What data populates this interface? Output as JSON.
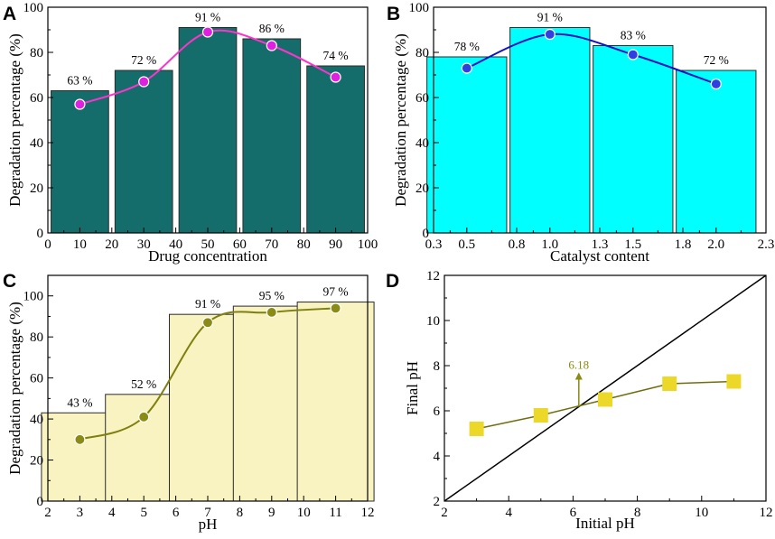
{
  "chart_data": [
    {
      "panel": "A",
      "type": "bar",
      "x": [
        10,
        30,
        50,
        70,
        90
      ],
      "values": [
        63,
        72,
        91,
        86,
        74
      ],
      "value_labels": [
        "63 %",
        "72 %",
        "91 %",
        "86 %",
        "74 %"
      ],
      "line_series": {
        "name": "trend",
        "x": [
          10,
          30,
          50,
          70,
          90
        ],
        "y": [
          57,
          67,
          89,
          83,
          69
        ]
      },
      "xlabel": "Drug concentration",
      "ylabel": "Degradation percentage (%)",
      "xlim": [
        0,
        100
      ],
      "ylim": [
        0,
        100
      ],
      "xticks": [
        0,
        10,
        20,
        30,
        40,
        50,
        60,
        70,
        80,
        90,
        100
      ],
      "xtick_labels": [
        "0",
        "10",
        "20",
        "30",
        "40",
        "50",
        "60",
        "70",
        "80",
        "90",
        "100"
      ],
      "yticks": [
        0,
        20,
        40,
        60,
        80,
        100
      ],
      "ytick_labels": [
        "0",
        "20",
        "40",
        "60",
        "80",
        "100"
      ],
      "colors": {
        "bar": "#156d6b",
        "line": "#ff33cc",
        "marker": "#e020e0"
      }
    },
    {
      "panel": "B",
      "type": "bar",
      "x": [
        0.5,
        1.0,
        1.5,
        2.0
      ],
      "values": [
        78,
        91,
        83,
        72
      ],
      "value_labels": [
        "78 %",
        "91 %",
        "83 %",
        "72 %"
      ],
      "line_series": {
        "name": "trend",
        "x": [
          0.5,
          1.0,
          1.5,
          2.0
        ],
        "y": [
          73,
          88,
          79,
          66
        ]
      },
      "xlabel": "Catalyst content",
      "ylabel": "Degradation percentage (%)",
      "xlim": [
        0.3,
        2.3
      ],
      "ylim": [
        0,
        100
      ],
      "xticks": [
        0.3,
        0.5,
        0.8,
        1.0,
        1.3,
        1.5,
        1.8,
        2.0,
        2.3
      ],
      "xtick_labels": [
        "0.3",
        "0.5",
        "0.8",
        "1.0",
        "1.3",
        "1.5",
        "1.8",
        "2.0",
        "2.3"
      ],
      "yticks": [
        0,
        20,
        40,
        60,
        80,
        100
      ],
      "ytick_labels": [
        "0",
        "20",
        "40",
        "60",
        "80",
        "100"
      ],
      "colors": {
        "bar": "#00ffff",
        "line": "#1010c0",
        "marker": "#3040e0"
      }
    },
    {
      "panel": "C",
      "type": "bar",
      "x": [
        3,
        5,
        7,
        9,
        11
      ],
      "values": [
        43,
        52,
        91,
        95,
        97
      ],
      "value_labels": [
        "43 %",
        "52 %",
        "91 %",
        "95 %",
        "97 %"
      ],
      "line_series": {
        "name": "trend",
        "x": [
          3,
          5,
          7,
          9,
          11
        ],
        "y": [
          30,
          41,
          87,
          92,
          94
        ]
      },
      "xlabel": "pH",
      "ylabel": "Degradation percentage (%)",
      "xlim": [
        2,
        12
      ],
      "ylim": [
        0,
        110
      ],
      "xticks": [
        2,
        3,
        4,
        5,
        6,
        7,
        8,
        9,
        10,
        11,
        12
      ],
      "xtick_labels": [
        "2",
        "3",
        "4",
        "5",
        "6",
        "7",
        "8",
        "9",
        "10",
        "11",
        "12"
      ],
      "yticks": [
        0,
        20,
        40,
        60,
        80,
        100
      ],
      "ytick_labels": [
        "0",
        "20",
        "40",
        "60",
        "80",
        "100"
      ],
      "colors": {
        "bar": "#f8f3c0",
        "line": "#7f7f10",
        "marker": "#8a8a14"
      }
    },
    {
      "panel": "D",
      "type": "scatter",
      "series": [
        {
          "name": "Final pH",
          "x": [
            3,
            5,
            7,
            9,
            11
          ],
          "y": [
            5.2,
            5.8,
            6.5,
            7.2,
            7.3
          ]
        }
      ],
      "reference_line": {
        "name": "y = x",
        "x": [
          2,
          12
        ],
        "y": [
          2,
          12
        ]
      },
      "annotation": {
        "text": "6.18",
        "x": 6.18,
        "y": 6.18
      },
      "xlabel": "Initial pH",
      "ylabel": "Final pH",
      "xlim": [
        2,
        12
      ],
      "ylim": [
        2,
        12
      ],
      "xticks": [
        2,
        4,
        6,
        8,
        10,
        12
      ],
      "xtick_labels": [
        "2",
        "4",
        "6",
        "8",
        "10",
        "12"
      ],
      "yticks": [
        2,
        4,
        6,
        8,
        10,
        12
      ],
      "ytick_labels": [
        "2",
        "4",
        "6",
        "8",
        "10",
        "12"
      ],
      "colors": {
        "marker": "#ecd829",
        "line": "#6e6e10",
        "ref": "#000000",
        "annot": "#8a8a14"
      }
    }
  ]
}
